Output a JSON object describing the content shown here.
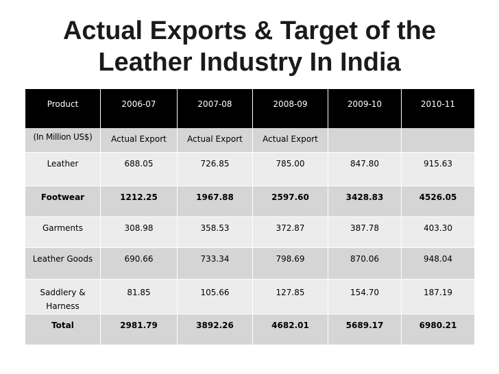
{
  "title": {
    "line1": "Actual Exports & Target of the",
    "line2": "Leather Industry In India"
  },
  "table": {
    "headers": [
      "Product",
      "2006-07",
      "2007-08",
      "2008-09",
      "2009-10",
      "2010-11"
    ],
    "subheader": [
      "(In Million US$)",
      "Actual Export",
      "Actual Export",
      "Actual Export",
      "",
      ""
    ],
    "rows": [
      {
        "product": "Leather",
        "values": [
          "688.05",
          "726.85",
          "785.00",
          "847.80",
          "915.63"
        ]
      },
      {
        "product": "Footwear",
        "values": [
          "1212.25",
          "1967.88",
          "2597.60",
          "3428.83",
          "4526.05"
        ]
      },
      {
        "product": "Garments",
        "values": [
          "308.98",
          "358.53",
          "372.87",
          "387.78",
          "403.30"
        ]
      },
      {
        "product": "Leather Goods",
        "values": [
          "690.66",
          "733.34",
          "798.69",
          "870.06",
          "948.04"
        ]
      },
      {
        "product": "Saddlery & Harness",
        "values": [
          "81.85",
          "105.66",
          "127.85",
          "154.70",
          "187.19"
        ]
      },
      {
        "product": "Total",
        "values": [
          "2981.79",
          "3892.26",
          "4682.01",
          "5689.17",
          "6980.21"
        ]
      }
    ]
  },
  "colors": {
    "header_bg": "#000000",
    "row_dark": "#d5d5d5",
    "row_light": "#ececec"
  }
}
